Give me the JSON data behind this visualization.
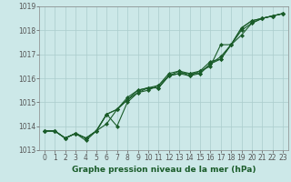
{
  "title": "Graphe pression niveau de la mer (hPa)",
  "bg_color": "#cce8e8",
  "grid_color": "#aacccc",
  "line_color": "#1a5c2a",
  "x_min": -0.5,
  "x_max": 23.5,
  "y_min": 1013,
  "y_max": 1019,
  "series": [
    [
      1013.8,
      1013.8,
      1013.5,
      1013.7,
      1013.5,
      1013.8,
      1014.5,
      1014.7,
      1015.2,
      1015.5,
      1015.6,
      1015.6,
      1016.1,
      1016.2,
      1016.1,
      1016.2,
      1016.6,
      1016.8,
      1017.4,
      1018.1,
      1018.4,
      1018.5,
      1018.6,
      1018.7
    ],
    [
      1013.8,
      1013.8,
      1013.5,
      1013.7,
      1013.5,
      1013.8,
      1014.5,
      1014.0,
      1015.0,
      1015.4,
      1015.6,
      1015.6,
      1016.1,
      1016.2,
      1016.2,
      1016.3,
      1016.5,
      1017.4,
      1017.4,
      1018.0,
      1018.3,
      1018.5,
      1018.6,
      1018.7
    ],
    [
      1013.8,
      1013.8,
      1013.5,
      1013.7,
      1013.4,
      1013.8,
      1014.1,
      1014.7,
      1015.1,
      1015.4,
      1015.5,
      1015.7,
      1016.1,
      1016.3,
      1016.1,
      1016.3,
      1016.7,
      1016.8,
      1017.4,
      1017.8,
      1018.3,
      1018.5,
      1018.6,
      1018.7
    ],
    [
      1013.8,
      1013.8,
      1013.5,
      1013.7,
      1013.5,
      1013.8,
      1014.5,
      1014.7,
      1015.1,
      1015.5,
      1015.6,
      1015.7,
      1016.2,
      1016.3,
      1016.2,
      1016.2,
      1016.6,
      1016.9,
      1017.4,
      1018.1,
      1018.4,
      1018.5,
      1018.6,
      1018.7
    ]
  ],
  "yticks": [
    1013,
    1014,
    1015,
    1016,
    1017,
    1018,
    1019
  ],
  "xticks": [
    0,
    1,
    2,
    3,
    4,
    5,
    6,
    7,
    8,
    9,
    10,
    11,
    12,
    13,
    14,
    15,
    16,
    17,
    18,
    19,
    20,
    21,
    22,
    23
  ],
  "title_fontsize": 6.5,
  "tick_fontsize": 5.5,
  "marker": "D",
  "markersize": 2.0,
  "linewidth": 0.8
}
